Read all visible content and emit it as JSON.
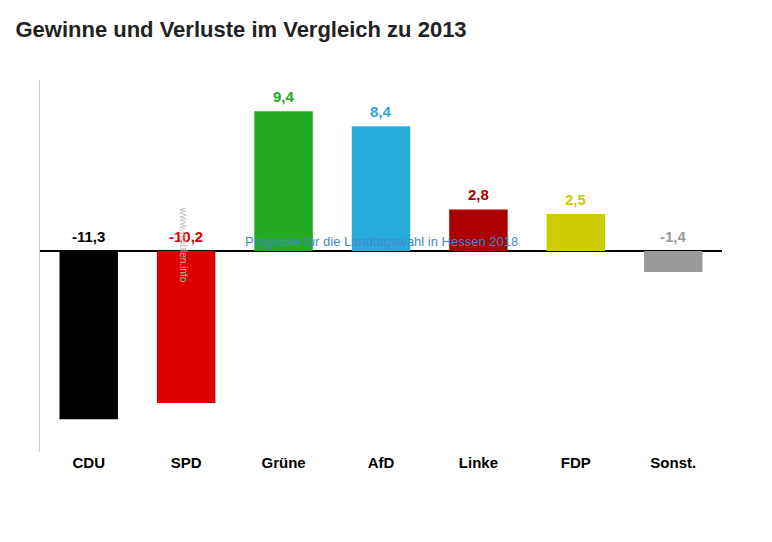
{
  "chart_data": {
    "type": "bar",
    "title": "Gewinne und Verluste im Vergleich zu 2013",
    "subtitle": "Prognose für die Landtagswahl in Hessen 2018",
    "annotations": [
      "www.wahlen.info"
    ],
    "categories": [
      "CDU",
      "SPD",
      "Grüne",
      "AfD",
      "Linke",
      "FDP",
      "Sonst."
    ],
    "values": [
      -11.3,
      -10.2,
      9.4,
      8.4,
      2.8,
      2.5,
      -1.4
    ],
    "value_labels": [
      "-11,3",
      "-10,2",
      "9,4",
      "8,4",
      "2,8",
      "2,5",
      "-1,4"
    ],
    "colors": [
      "#000000",
      "#dd0000",
      "#22aa22",
      "#29aadd",
      "#aa0000",
      "#cccc00",
      "#999999"
    ],
    "ylim": [
      -13.5,
      11.5
    ],
    "data_labels": true,
    "tick_labels": "x",
    "grid": false
  }
}
